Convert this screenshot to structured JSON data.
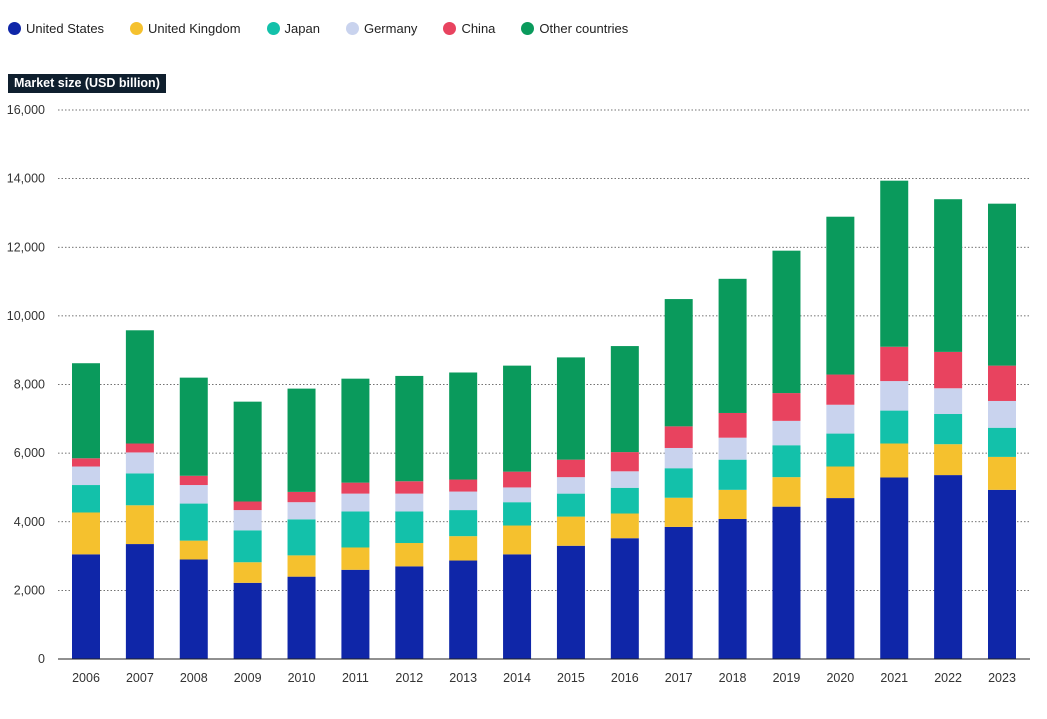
{
  "chart_data": {
    "type": "bar",
    "stacked": true,
    "ylabel": "Market size (USD billion)",
    "ylim": [
      0,
      16000
    ],
    "yticks": [
      0,
      2000,
      4000,
      6000,
      8000,
      10000,
      12000,
      14000,
      16000
    ],
    "ytick_labels": [
      "0",
      "2,000",
      "4,000",
      "6,000",
      "8,000",
      "10,000",
      "12,000",
      "14,000",
      "16,000"
    ],
    "grid": "horizontal dotted",
    "legend_placement": "top-left",
    "categories": [
      "2006",
      "2007",
      "2008",
      "2009",
      "2010",
      "2011",
      "2012",
      "2013",
      "2014",
      "2015",
      "2016",
      "2017",
      "2018",
      "2019",
      "2020",
      "2021",
      "2022",
      "2023"
    ],
    "series": [
      {
        "name": "United States",
        "color": "#0f26a8",
        "values": [
          3050,
          3350,
          2900,
          2220,
          2400,
          2600,
          2700,
          2870,
          3050,
          3300,
          3520,
          3850,
          4080,
          4440,
          4690,
          5290,
          5360,
          4930
        ]
      },
      {
        "name": "United Kingdom",
        "color": "#f5c12e",
        "values": [
          1220,
          1130,
          550,
          600,
          620,
          650,
          680,
          710,
          840,
          850,
          720,
          850,
          850,
          860,
          920,
          990,
          900,
          960
        ]
      },
      {
        "name": "Japan",
        "color": "#13c1aa",
        "values": [
          800,
          930,
          1080,
          930,
          1050,
          1050,
          920,
          760,
          680,
          670,
          750,
          860,
          880,
          930,
          960,
          960,
          880,
          850
        ]
      },
      {
        "name": "Germany",
        "color": "#c9d3ee",
        "values": [
          540,
          610,
          540,
          590,
          500,
          520,
          520,
          540,
          430,
          480,
          480,
          590,
          640,
          710,
          840,
          860,
          750,
          780
        ]
      },
      {
        "name": "China",
        "color": "#e8435f",
        "values": [
          240,
          260,
          270,
          250,
          300,
          320,
          360,
          350,
          460,
          510,
          560,
          630,
          720,
          810,
          880,
          1000,
          1060,
          1030
        ]
      },
      {
        "name": "Other countries",
        "color": "#0a9a5c",
        "values": [
          2770,
          3300,
          2860,
          2910,
          3010,
          3030,
          3070,
          3120,
          3090,
          2980,
          3090,
          3710,
          3910,
          4150,
          4600,
          4840,
          4450,
          4720
        ]
      }
    ]
  }
}
